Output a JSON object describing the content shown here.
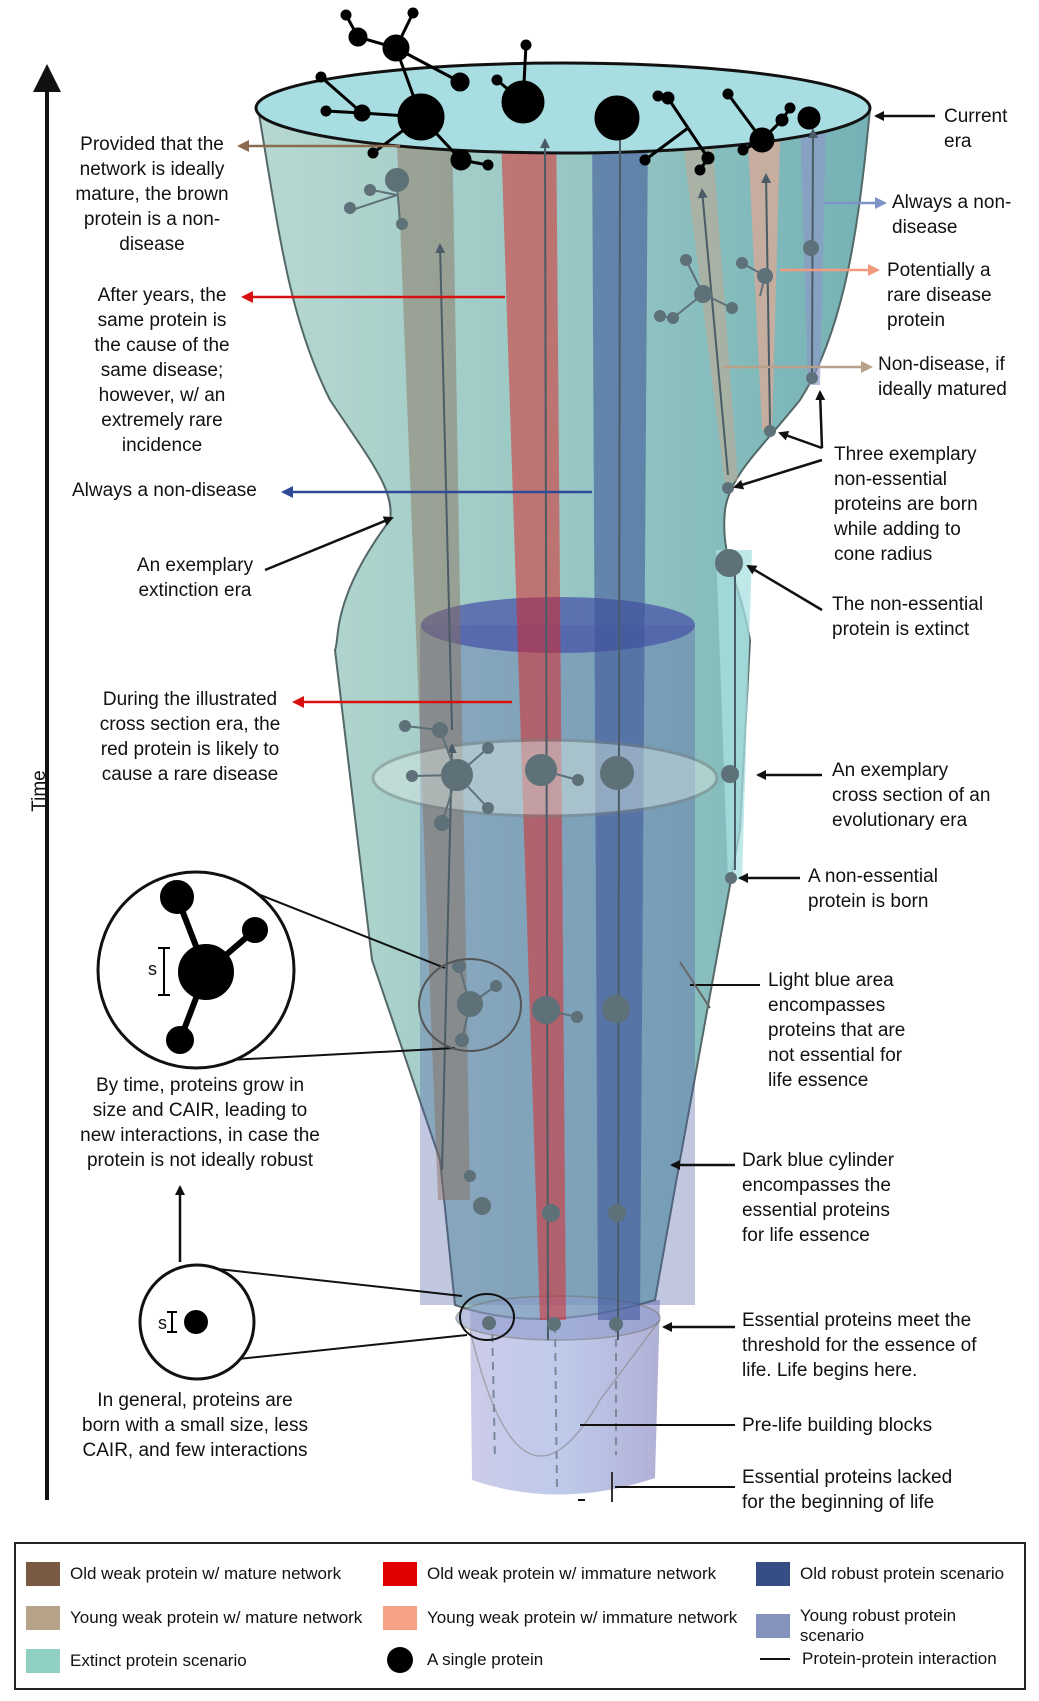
{
  "axis": {
    "time_label": "Time"
  },
  "annotations": {
    "current_era": "Current\nera",
    "brown_mature": "Provided that the\nnetwork is ideally\nmature, the brown\nprotein is a non-\ndisease",
    "same_protein": "After years, the\nsame protein is\nthe cause of the\nsame disease;\nhowever, w/ an\nextremely rare\nincidence",
    "always_nondisease_left": "Always a non-disease",
    "extinction_era": "An exemplary\nextinction era",
    "always_nondisease_right": "Always a non-\ndisease",
    "potentially_rare": "Potentially a\nrare disease\nprotein",
    "nondisease_if_matured": "Non-disease, if\nideally matured",
    "three_nonessential": "Three exemplary\nnon-essential\nproteins are born\nwhile adding to\ncone radius",
    "nonessential_extinct": "The non-essential\nprotein is extinct",
    "red_rare_disease": "During the illustrated\ncross section era, the\nred protein is likely to\ncause a rare disease",
    "cross_section": "An exemplary\ncross section of an\nevolutionary era",
    "nonessential_born": "A non-essential\nprotein is born",
    "light_blue_area": "Light blue area\nencompasses\nproteins that are\nnot essential for\nlife essence",
    "grow_in_size": "By time, proteins grow in\nsize and CAIR, leading to\nnew interactions, in case the\nprotein is not ideally robust",
    "dark_blue_cylinder": "Dark blue cylinder\nencompasses the\nessential proteins\nfor life essence",
    "essential_threshold": "Essential proteins meet the\nthreshold for the essence of\nlife. Life begins here.",
    "born_small": "In general, proteins are\nborn with a small size, less\nCAIR, and few interactions",
    "pre_life": "Pre-life building blocks",
    "essential_lacked": "Essential proteins lacked\nfor the beginning of life",
    "size_label_large": "s",
    "size_label_small": "s"
  },
  "legend": {
    "items": [
      {
        "label": "Old weak protein w/ mature network",
        "color": "#7b5a44"
      },
      {
        "label": "Old weak protein w/ immature network",
        "color": "#e00000"
      },
      {
        "label": "Old robust protein scenario",
        "color": "#364d85"
      },
      {
        "label": "Young weak protein w/ mature network",
        "color": "#b7a28a"
      },
      {
        "label": "Young weak protein w/ immature network",
        "color": "#f4a186"
      },
      {
        "label": "Young robust protein scenario",
        "color": "#8592bd"
      },
      {
        "label": "Extinct protein scenario",
        "color": "#8fd0c2"
      },
      {
        "label": "A single protein",
        "icon": "protein-dot-icon"
      },
      {
        "label": "Protein-protein interaction",
        "icon": "interaction-line-icon"
      }
    ]
  },
  "colors": {
    "cone_fill": "#9cc9c4",
    "cylinder": "#4a5aa0",
    "top_ellipse": "#a8dde2",
    "arrow_brown": "#8b6a52",
    "arrow_red": "#d81010",
    "arrow_blue": "#2f4a96",
    "arrow_lightblue": "#7f92c8",
    "arrow_salmon": "#f19a80",
    "arrow_tan": "#b9a088"
  }
}
